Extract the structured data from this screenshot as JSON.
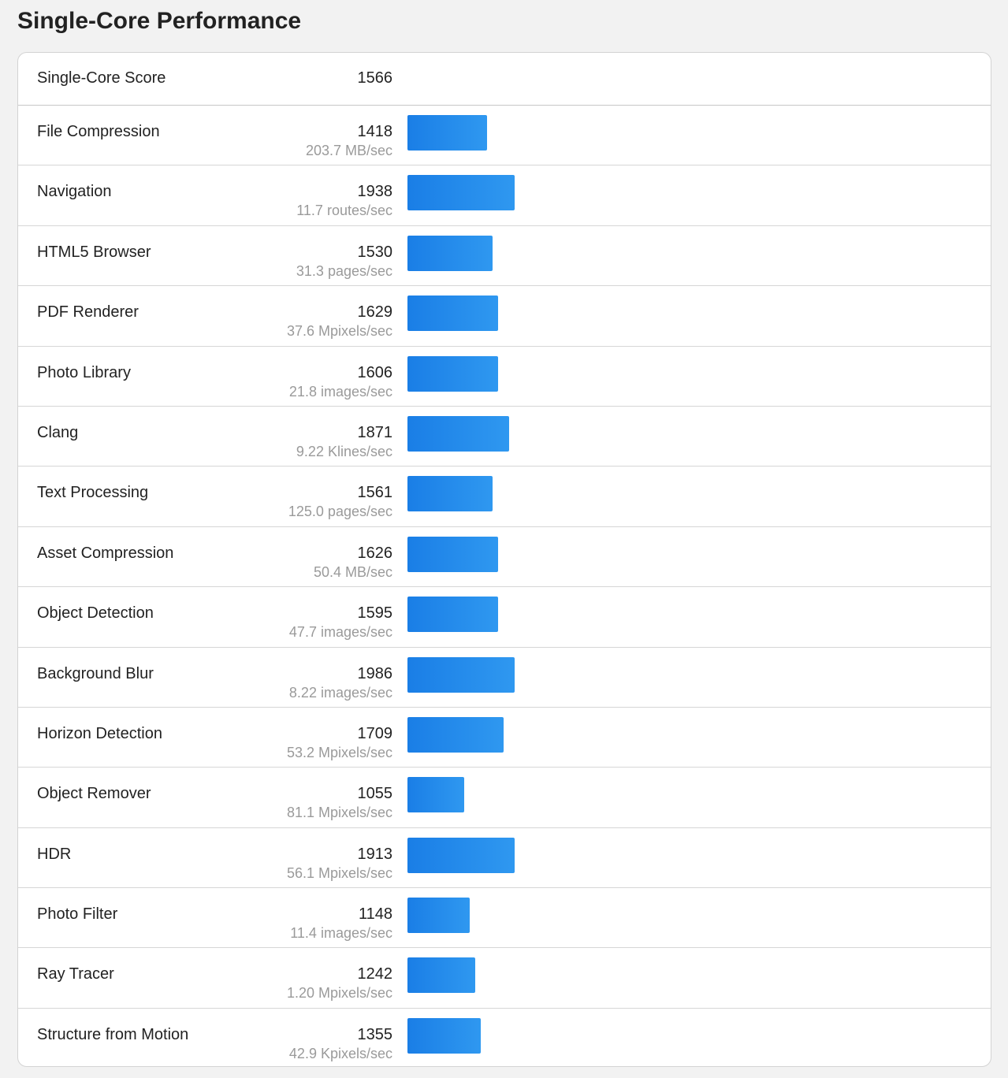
{
  "page": {
    "title": "Single-Core Performance"
  },
  "summary": {
    "label": "Single-Core Score",
    "score": "1566"
  },
  "bar_scale_max": 1986,
  "bar_color": "#1f88ea",
  "benchmarks": [
    {
      "name": "File Compression",
      "score": "1418",
      "rate": "203.7 MB/sec",
      "bar_fraction": 0.743
    },
    {
      "name": "Navigation",
      "score": "1938",
      "rate": "11.7 routes/sec",
      "bar_fraction": 1.0
    },
    {
      "name": "HTML5 Browser",
      "score": "1530",
      "rate": "31.3 pages/sec",
      "bar_fraction": 0.794
    },
    {
      "name": "PDF Renderer",
      "score": "1629",
      "rate": "37.6 Mpixels/sec",
      "bar_fraction": 0.846
    },
    {
      "name": "Photo Library",
      "score": "1606",
      "rate": "21.8 images/sec",
      "bar_fraction": 0.846
    },
    {
      "name": "Clang",
      "score": "1871",
      "rate": "9.22 Klines/sec",
      "bar_fraction": 0.949
    },
    {
      "name": "Text Processing",
      "score": "1561",
      "rate": "125.0 pages/sec",
      "bar_fraction": 0.794
    },
    {
      "name": "Asset Compression",
      "score": "1626",
      "rate": "50.4 MB/sec",
      "bar_fraction": 0.846
    },
    {
      "name": "Object Detection",
      "score": "1595",
      "rate": "47.7 images/sec",
      "bar_fraction": 0.846
    },
    {
      "name": "Background Blur",
      "score": "1986",
      "rate": "8.22 images/sec",
      "bar_fraction": 1.0
    },
    {
      "name": "Horizon Detection",
      "score": "1709",
      "rate": "53.2 Mpixels/sec",
      "bar_fraction": 0.897
    },
    {
      "name": "Object Remover",
      "score": "1055",
      "rate": "81.1 Mpixels/sec",
      "bar_fraction": 0.529
    },
    {
      "name": "HDR",
      "score": "1913",
      "rate": "56.1 Mpixels/sec",
      "bar_fraction": 1.0
    },
    {
      "name": "Photo Filter",
      "score": "1148",
      "rate": "11.4 images/sec",
      "bar_fraction": 0.581
    },
    {
      "name": "Ray Tracer",
      "score": "1242",
      "rate": "1.20 Mpixels/sec",
      "bar_fraction": 0.632
    },
    {
      "name": "Structure from Motion",
      "score": "1355",
      "rate": "42.9 Kpixels/sec",
      "bar_fraction": 0.684
    }
  ]
}
